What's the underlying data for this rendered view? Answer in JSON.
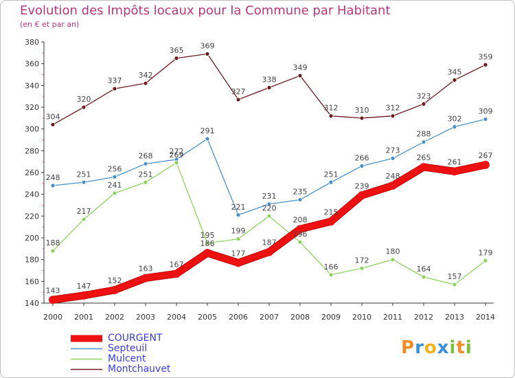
{
  "title": "Evolution des Impôts locaux pour la Commune par Habitant",
  "subtitle": "(en € et par an)",
  "logo": {
    "letters": [
      "P",
      "r",
      "o",
      "x",
      "i",
      "t",
      "i"
    ],
    "colors": [
      "#f28c28",
      "#3a8fd6",
      "#f2b21e",
      "#3a8fd6",
      "#7bbf3a",
      "#f28c28",
      "#7bbf3a"
    ]
  },
  "chart_data": {
    "type": "line",
    "x": [
      2000,
      2001,
      2002,
      2003,
      2004,
      2005,
      2006,
      2007,
      2008,
      2009,
      2010,
      2011,
      2012,
      2013,
      2014
    ],
    "ylim": [
      140,
      380
    ],
    "yticks": [
      140,
      160,
      180,
      200,
      220,
      240,
      260,
      280,
      300,
      320,
      340,
      360,
      380
    ],
    "grid": false,
    "legend_position": "bottom-left",
    "series": [
      {
        "name": "Montchauvet",
        "color": "#6b1a22",
        "values": [
          304,
          320,
          337,
          342,
          365,
          369,
          327,
          338,
          349,
          312,
          310,
          312,
          323,
          345,
          359
        ]
      },
      {
        "name": "Septeuil",
        "color": "#4a90c8",
        "values": [
          248,
          251,
          256,
          268,
          272,
          291,
          221,
          231,
          235,
          251,
          266,
          273,
          288,
          302,
          309
        ]
      },
      {
        "name": "Mulcent",
        "color": "#8fd160",
        "values": [
          188,
          217,
          241,
          251,
          269,
          195,
          199,
          220,
          196,
          166,
          172,
          180,
          164,
          157,
          179
        ]
      },
      {
        "name": "COURGENT",
        "color": "#ee1111",
        "values": [
          143,
          147,
          152,
          163,
          167,
          186,
          177,
          187,
          208,
          215,
          239,
          248,
          265,
          261,
          267
        ]
      }
    ]
  },
  "legend": [
    {
      "name": "COURGENT",
      "color": "#ee1111",
      "width": 10
    },
    {
      "name": "Septeuil",
      "color": "#4a90c8",
      "width": 1.5
    },
    {
      "name": "Mulcent",
      "color": "#8fd160",
      "width": 1.5
    },
    {
      "name": "Montchauvet",
      "color": "#6b1a22",
      "width": 1.5
    }
  ]
}
